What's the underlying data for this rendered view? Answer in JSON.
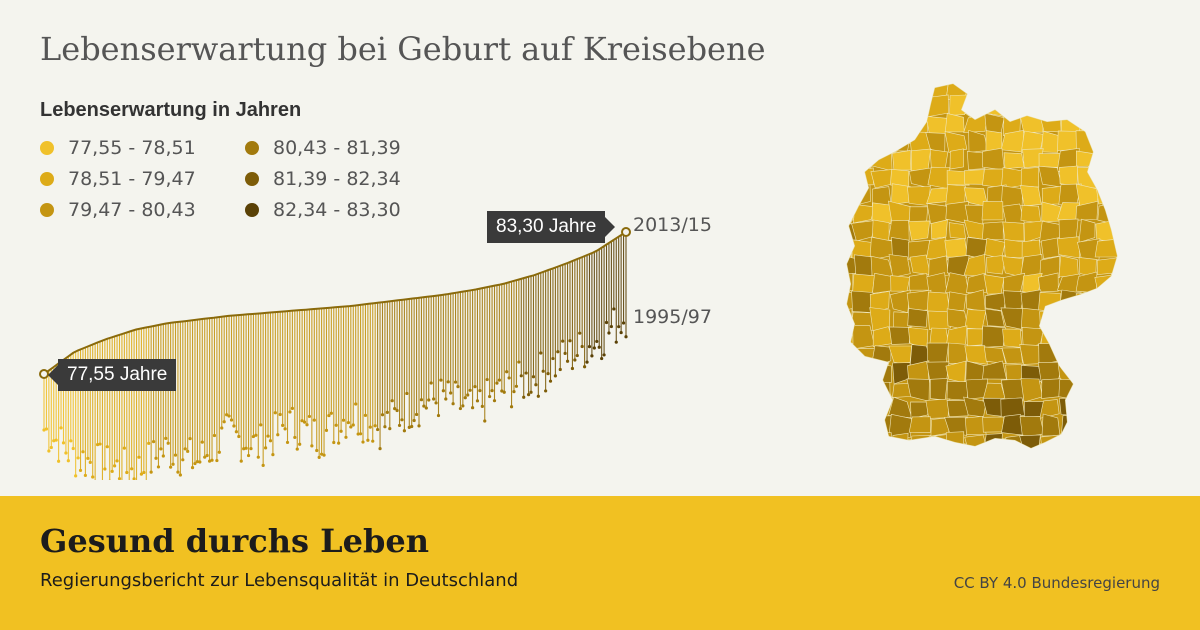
{
  "title": "Lebenserwartung bei Geburt auf Kreisebene",
  "chart_data": {
    "type": "dumbbell",
    "legend_title": "Lebenserwartung in Jahren",
    "legend": [
      {
        "label": "77,55 - 78,51",
        "color": "#f0c12a"
      },
      {
        "label": "78,51 - 79,47",
        "color": "#ddab18"
      },
      {
        "label": "79,47 - 80,43",
        "color": "#c49512"
      },
      {
        "label": "80,43 - 81,39",
        "color": "#a27a0d"
      },
      {
        "label": "81,39 - 82,34",
        "color": "#7d5c08"
      },
      {
        "label": "82,34 - 83,30",
        "color": "#5a4106"
      }
    ],
    "periods": [
      "1995/97",
      "2013/15"
    ],
    "min_label": "77,55 Jahre",
    "max_label": "83,30 Jahre",
    "min_value": 77.55,
    "max_value": 83.3,
    "series": [
      {
        "name": "2013/15",
        "values": [
          77.55,
          78.45,
          78.95,
          79.35,
          79.6,
          79.75,
          79.9,
          80.0,
          80.1,
          80.2,
          80.3,
          80.45,
          80.6,
          80.75,
          80.95,
          81.2,
          81.55,
          82.0,
          82.5,
          83.3
        ]
      },
      {
        "name": "1995/97",
        "values": [
          75.3,
          74.2,
          73.8,
          73.6,
          74.5,
          74.0,
          75.1,
          74.6,
          75.5,
          75.0,
          75.9,
          75.4,
          76.2,
          76.6,
          76.1,
          76.9,
          77.4,
          78.2,
          78.8,
          79.9
        ]
      }
    ]
  },
  "footer": {
    "title": "Gesund durchs Leben",
    "subtitle": "Regierungsbericht zur Lebensqualität in Deutschland",
    "credit": "CC BY 4.0 Bundesregierung"
  }
}
